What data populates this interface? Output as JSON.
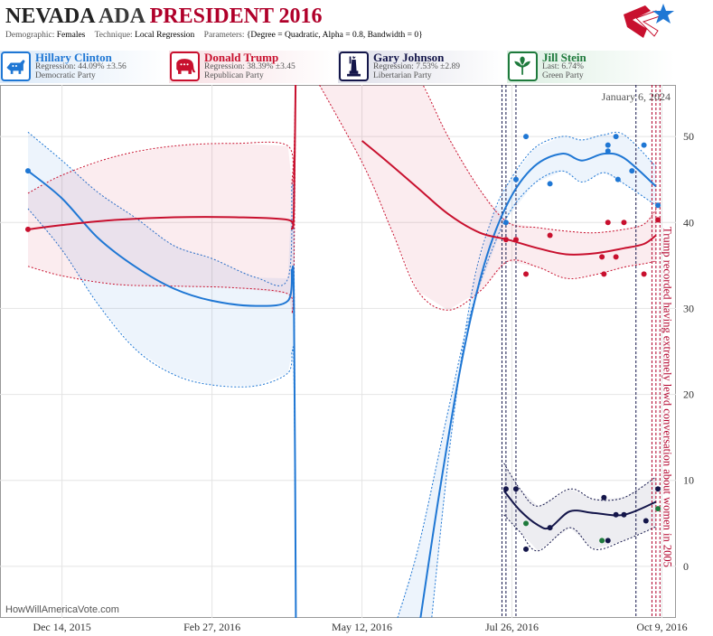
{
  "header": {
    "title_state": "NEVADA",
    "title_mid": "ADA",
    "title_race": "PRESIDENT 2016",
    "demographic_label": "Demographic:",
    "demographic_value": "Females",
    "technique_label": "Technique:",
    "technique_value": "Local Regression",
    "parameters_label": "Parameters:",
    "parameters_value": "{Degree = Quadratic, Alpha = 0.8, Bandwidth = 0}"
  },
  "candidates": [
    {
      "name": "Hillary Clinton",
      "stat": "Regression: 44.09% ±3.56",
      "party": "Democratic Party",
      "color": "#1f77d4",
      "icon": "donkey-icon"
    },
    {
      "name": "Donald Trump",
      "stat": "Regression: 38.39% ±3.45",
      "party": "Republican Party",
      "color": "#c8102e",
      "icon": "elephant-icon"
    },
    {
      "name": "Gary Johnson",
      "stat": "Regression: 7.53% ±2.89",
      "party": "Libertarian Party",
      "color": "#14164a",
      "icon": "liberty-icon"
    },
    {
      "name": "Jill Stein",
      "stat": "Last: 6.74%",
      "party": "Green Party",
      "color": "#1e7a3c",
      "icon": "leaf-icon"
    }
  ],
  "chart_data": {
    "type": "line",
    "date_annotation": "January 6, 2024",
    "watermark": "HowWillAmericaVote.com",
    "event_annotation": "Trump recorded having extremely lewd conversation about women in 2005",
    "x_ticks": [
      "2015-12-14",
      "2016-02-27",
      "2016-05-12",
      "2016-07-26",
      "2016-10-09"
    ],
    "x_tick_labels": [
      "Dec 14, 2015",
      "Feb 27, 2016",
      "May 12, 2016",
      "Jul 26, 2016",
      "Oct 9, 2016"
    ],
    "xlim": [
      "2015-11-13",
      "2016-10-16"
    ],
    "ylim": [
      -6,
      56
    ],
    "y_ticks": [
      0,
      10,
      20,
      30,
      40,
      50
    ],
    "grid": true,
    "event_lines": [
      "2016-07-21",
      "2016-07-23",
      "2016-07-28",
      "2016-09-26",
      "2016-10-04",
      "2016-10-06",
      "2016-10-08"
    ],
    "series": [
      {
        "name": "Hillary Clinton",
        "color": "#1f77d4",
        "line": [
          [
            "2015-11-27",
            46
          ],
          [
            "2015-12-14",
            42.8
          ],
          [
            "2016-01-01",
            38.2
          ],
          [
            "2016-01-20",
            34.8
          ],
          [
            "2016-02-08",
            32.3
          ],
          [
            "2016-02-27",
            30.9
          ],
          [
            "2016-03-20",
            30.3
          ],
          [
            "2016-04-05",
            30.9
          ],
          [
            "2016-04-07",
            34.5
          ],
          [
            "2016-04-08",
            30
          ],
          [
            "2016-04-09",
            -8
          ]
        ],
        "band_upper": [
          [
            "2015-11-27",
            50.5
          ],
          [
            "2015-12-14",
            47.2
          ],
          [
            "2016-01-01",
            43.5
          ],
          [
            "2016-01-20",
            40.5
          ],
          [
            "2016-02-08",
            37.3
          ],
          [
            "2016-02-27",
            35.8
          ],
          [
            "2016-03-20",
            33.6
          ],
          [
            "2016-04-05",
            33.5
          ],
          [
            "2016-04-07",
            44.5
          ],
          [
            "2016-04-08",
            36
          ],
          [
            "2016-04-09",
            -8
          ]
        ],
        "band_lower": [
          [
            "2015-11-27",
            41.6
          ],
          [
            "2015-12-14",
            36.8
          ],
          [
            "2016-01-01",
            30.5
          ],
          [
            "2016-01-20",
            25.2
          ],
          [
            "2016-02-08",
            22.3
          ],
          [
            "2016-02-27",
            21.1
          ],
          [
            "2016-03-20",
            21
          ],
          [
            "2016-04-05",
            22.5
          ],
          [
            "2016-04-07",
            25
          ],
          [
            "2016-04-08",
            22
          ],
          [
            "2016-04-09",
            -8
          ]
        ],
        "line_late": [
          [
            "2016-06-09",
            -8
          ],
          [
            "2016-06-20",
            9
          ],
          [
            "2016-07-01",
            24
          ],
          [
            "2016-07-12",
            35
          ],
          [
            "2016-07-24",
            42.3
          ],
          [
            "2016-08-06",
            46.5
          ],
          [
            "2016-08-20",
            48
          ],
          [
            "2016-08-30",
            47.2
          ],
          [
            "2016-09-10",
            48
          ],
          [
            "2016-09-20",
            47.5
          ],
          [
            "2016-10-06",
            44.2
          ]
        ],
        "band_late_upper": [
          [
            "2016-06-15",
            -8
          ],
          [
            "2016-06-25",
            14
          ],
          [
            "2016-07-06",
            32
          ],
          [
            "2016-07-16",
            40.5
          ],
          [
            "2016-07-24",
            44.5
          ],
          [
            "2016-08-06",
            48.6
          ],
          [
            "2016-08-20",
            50
          ],
          [
            "2016-08-30",
            49.6
          ],
          [
            "2016-09-10",
            50.2
          ],
          [
            "2016-09-20",
            50.2
          ],
          [
            "2016-10-06",
            46.5
          ]
        ],
        "band_late_lower": [
          [
            "2016-05-27",
            -8
          ],
          [
            "2016-06-09",
            2
          ],
          [
            "2016-06-24",
            18
          ],
          [
            "2016-07-06",
            30
          ],
          [
            "2016-07-22",
            40
          ],
          [
            "2016-08-06",
            44.5
          ],
          [
            "2016-08-20",
            46
          ],
          [
            "2016-08-30",
            44.7
          ],
          [
            "2016-09-10",
            45.8
          ],
          [
            "2016-09-20",
            44.5
          ],
          [
            "2016-10-06",
            42
          ]
        ],
        "points": [
          [
            "2015-11-27",
            46
          ],
          [
            "2016-07-23",
            40
          ],
          [
            "2016-07-28",
            45
          ],
          [
            "2016-08-02",
            50
          ],
          [
            "2016-08-14",
            44.5
          ],
          [
            "2016-09-12",
            48.3
          ],
          [
            "2016-09-12",
            49
          ],
          [
            "2016-09-16",
            50
          ],
          [
            "2016-09-17",
            45
          ],
          [
            "2016-09-24",
            46
          ],
          [
            "2016-09-30",
            49
          ],
          [
            "2016-10-07",
            42
          ]
        ]
      },
      {
        "name": "Donald Trump",
        "color": "#c8102e",
        "line": [
          [
            "2015-11-27",
            39.2
          ],
          [
            "2015-12-14",
            39.7
          ],
          [
            "2016-01-10",
            40.3
          ],
          [
            "2016-02-08",
            40.6
          ],
          [
            "2016-03-10",
            40.6
          ],
          [
            "2016-04-05",
            40.3
          ],
          [
            "2016-04-07",
            39.3
          ],
          [
            "2016-04-08",
            42
          ],
          [
            "2016-04-09",
            60
          ]
        ],
        "band_upper": [
          [
            "2015-11-27",
            43.4
          ],
          [
            "2015-12-14",
            45.5
          ],
          [
            "2016-01-10",
            47.7
          ],
          [
            "2016-02-08",
            48.9
          ],
          [
            "2016-03-10",
            49.2
          ],
          [
            "2016-04-05",
            48.9
          ],
          [
            "2016-04-07",
            44.5
          ],
          [
            "2016-04-08",
            48
          ],
          [
            "2016-04-09",
            60
          ]
        ],
        "band_lower": [
          [
            "2015-11-27",
            34.9
          ],
          [
            "2015-12-14",
            33.8
          ],
          [
            "2016-01-10",
            32.8
          ],
          [
            "2016-02-08",
            32.6
          ],
          [
            "2016-03-10",
            32.4
          ],
          [
            "2016-04-05",
            31.7
          ],
          [
            "2016-04-07",
            29.5
          ],
          [
            "2016-04-08",
            35
          ],
          [
            "2016-04-09",
            60
          ]
        ],
        "line_late": [
          [
            "2016-05-12",
            49.5
          ],
          [
            "2016-05-25",
            47
          ],
          [
            "2016-06-09",
            44
          ],
          [
            "2016-06-24",
            41
          ],
          [
            "2016-07-10",
            38.8
          ],
          [
            "2016-07-24",
            38
          ],
          [
            "2016-08-08",
            37
          ],
          [
            "2016-08-22",
            36.3
          ],
          [
            "2016-09-05",
            36.4
          ],
          [
            "2016-09-20",
            37
          ],
          [
            "2016-09-30",
            37.5
          ],
          [
            "2016-10-06",
            38.5
          ]
        ],
        "band_late_upper": [
          [
            "2016-04-09",
            60
          ],
          [
            "2016-05-12",
            60
          ],
          [
            "2016-05-27",
            60
          ],
          [
            "2016-06-09",
            57
          ],
          [
            "2016-06-24",
            50
          ],
          [
            "2016-07-10",
            43.8
          ],
          [
            "2016-07-24",
            40
          ],
          [
            "2016-08-08",
            39.4
          ],
          [
            "2016-08-22",
            39
          ],
          [
            "2016-09-05",
            38.8
          ],
          [
            "2016-09-20",
            39.2
          ],
          [
            "2016-09-30",
            39.8
          ],
          [
            "2016-10-06",
            41.5
          ]
        ],
        "band_late_lower": [
          [
            "2016-04-11",
            60
          ],
          [
            "2016-05-12",
            47
          ],
          [
            "2016-05-27",
            39
          ],
          [
            "2016-06-09",
            32
          ],
          [
            "2016-06-24",
            29.8
          ],
          [
            "2016-07-10",
            32
          ],
          [
            "2016-07-24",
            35.5
          ],
          [
            "2016-08-08",
            34.8
          ],
          [
            "2016-08-22",
            33.5
          ],
          [
            "2016-09-05",
            33.9
          ],
          [
            "2016-09-20",
            34.8
          ],
          [
            "2016-09-30",
            35.2
          ],
          [
            "2016-10-06",
            35.5
          ]
        ],
        "points": [
          [
            "2015-11-27",
            39.2
          ],
          [
            "2016-07-23",
            38
          ],
          [
            "2016-07-28",
            38
          ],
          [
            "2016-08-02",
            34
          ],
          [
            "2016-08-14",
            38.5
          ],
          [
            "2016-09-09",
            36
          ],
          [
            "2016-09-10",
            34
          ],
          [
            "2016-09-12",
            40
          ],
          [
            "2016-09-16",
            36
          ],
          [
            "2016-09-20",
            40
          ],
          [
            "2016-09-30",
            34
          ],
          [
            "2016-10-07",
            40.3
          ]
        ]
      },
      {
        "name": "Gary Johnson",
        "color": "#14164a",
        "line": [
          [
            "2016-07-22",
            8.8
          ],
          [
            "2016-07-30",
            6.5
          ],
          [
            "2016-08-08",
            4.8
          ],
          [
            "2016-08-14",
            4.5
          ],
          [
            "2016-08-24",
            6.4
          ],
          [
            "2016-09-05",
            6.2
          ],
          [
            "2016-09-20",
            6
          ],
          [
            "2016-10-06",
            7.5
          ]
        ],
        "band_upper": [
          [
            "2016-07-22",
            12
          ],
          [
            "2016-07-30",
            9
          ],
          [
            "2016-08-08",
            7
          ],
          [
            "2016-08-24",
            9
          ],
          [
            "2016-09-05",
            7.8
          ],
          [
            "2016-09-20",
            8
          ],
          [
            "2016-10-06",
            10.4
          ]
        ],
        "band_lower": [
          [
            "2016-07-22",
            6
          ],
          [
            "2016-07-30",
            4
          ],
          [
            "2016-08-08",
            1.8
          ],
          [
            "2016-08-24",
            4.5
          ],
          [
            "2016-09-05",
            2
          ],
          [
            "2016-09-20",
            3
          ],
          [
            "2016-10-06",
            4.6
          ]
        ],
        "points": [
          [
            "2016-07-23",
            9
          ],
          [
            "2016-07-28",
            9
          ],
          [
            "2016-08-02",
            2
          ],
          [
            "2016-08-14",
            4.5
          ],
          [
            "2016-09-10",
            8
          ],
          [
            "2016-09-12",
            3
          ],
          [
            "2016-09-16",
            6
          ],
          [
            "2016-09-20",
            6
          ],
          [
            "2016-10-01",
            5.3
          ],
          [
            "2016-10-07",
            9
          ]
        ]
      },
      {
        "name": "Jill Stein",
        "color": "#1e7a3c",
        "points": [
          [
            "2016-08-02",
            5
          ],
          [
            "2016-09-09",
            3
          ],
          [
            "2016-10-07",
            6.7
          ]
        ]
      }
    ]
  }
}
